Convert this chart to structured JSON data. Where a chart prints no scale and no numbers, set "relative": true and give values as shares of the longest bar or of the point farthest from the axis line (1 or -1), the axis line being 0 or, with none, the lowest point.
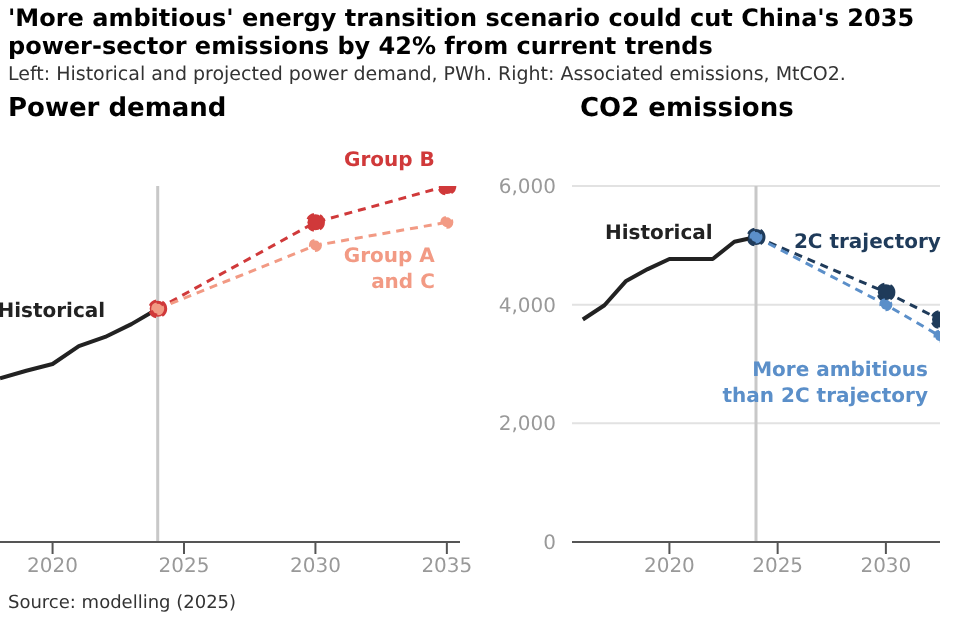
{
  "chart_data": [
    {
      "type": "line",
      "title": "Power demand",
      "relative": true,
      "annotations": [
        "'More ambitious' energy transition scenario could cut China's 2035 power-sector emissions by 42% from current trends",
        "Left: Historical and projected power demand, PWh. Right: Associated emissions, MtCO2.",
        "Source: modelling (2025)"
      ],
      "xlim": [
        2018,
        2035.5
      ],
      "xticks": [
        2020,
        2025,
        2030,
        2035
      ],
      "grid": false,
      "legend": false,
      "ref_lines": [
        {
          "axis": "x",
          "value": 2024,
          "color": "#c8c8c8"
        }
      ],
      "series": [
        {
          "name": "Historical",
          "color": "#222222",
          "line_style": "solid",
          "marker": "none",
          "x": [
            2018,
            2019,
            2020,
            2021,
            2022,
            2023,
            2024
          ],
          "values": [
            0.46,
            0.481,
            0.5,
            0.55,
            0.576,
            0.612,
            0.655
          ]
        },
        {
          "name": "Group B",
          "color": "#d0393a",
          "line_style": "dashed",
          "marker": "circle",
          "x": [
            2024,
            2030,
            2035
          ],
          "values": [
            0.655,
            0.898,
            1
          ]
        },
        {
          "name": "Group A and C",
          "color": "#f29a84",
          "line_style": "dashed",
          "marker": "circle",
          "x": [
            2024,
            2030,
            2035
          ],
          "values": [
            0.655,
            0.833,
            0.898
          ]
        }
      ]
    },
    {
      "type": "line",
      "title": "CO2 emissions",
      "xlim": [
        2015.5,
        2032.5
      ],
      "xticks": [
        2020,
        2025,
        2030
      ],
      "ylim": [
        0,
        6000
      ],
      "yticks": [
        {
          "value": 0,
          "label": "0"
        },
        {
          "value": 2000,
          "label": "2,000"
        },
        {
          "value": 4000,
          "label": "4,000"
        },
        {
          "value": 6000,
          "label": "6,000"
        }
      ],
      "grid": "y",
      "legend": false,
      "ref_lines": [
        {
          "axis": "x",
          "value": 2024,
          "color": "#c8c8c8"
        }
      ],
      "series": [
        {
          "name": "Historical",
          "color": "#222222",
          "line_style": "solid",
          "marker": "none",
          "x": [
            2016,
            2017,
            2018,
            2019,
            2020,
            2021,
            2022,
            2023,
            2024
          ],
          "values": [
            3750,
            3990,
            4400,
            4600,
            4770,
            4770,
            4770,
            5060,
            5140
          ]
        },
        {
          "name": "2C trajectory",
          "color": "#1f3b5a",
          "line_style": "dashed",
          "marker": "circle",
          "x": [
            2024,
            2030,
            2032.5
          ],
          "values": [
            5140,
            4210,
            3750
          ]
        },
        {
          "name": "More ambitious than 2C trajectory",
          "color": "#5b8fc9",
          "line_style": "dashed",
          "marker": "circle",
          "x": [
            2024,
            2030,
            2032.5
          ],
          "values": [
            5140,
            4000,
            3470
          ]
        }
      ]
    }
  ]
}
